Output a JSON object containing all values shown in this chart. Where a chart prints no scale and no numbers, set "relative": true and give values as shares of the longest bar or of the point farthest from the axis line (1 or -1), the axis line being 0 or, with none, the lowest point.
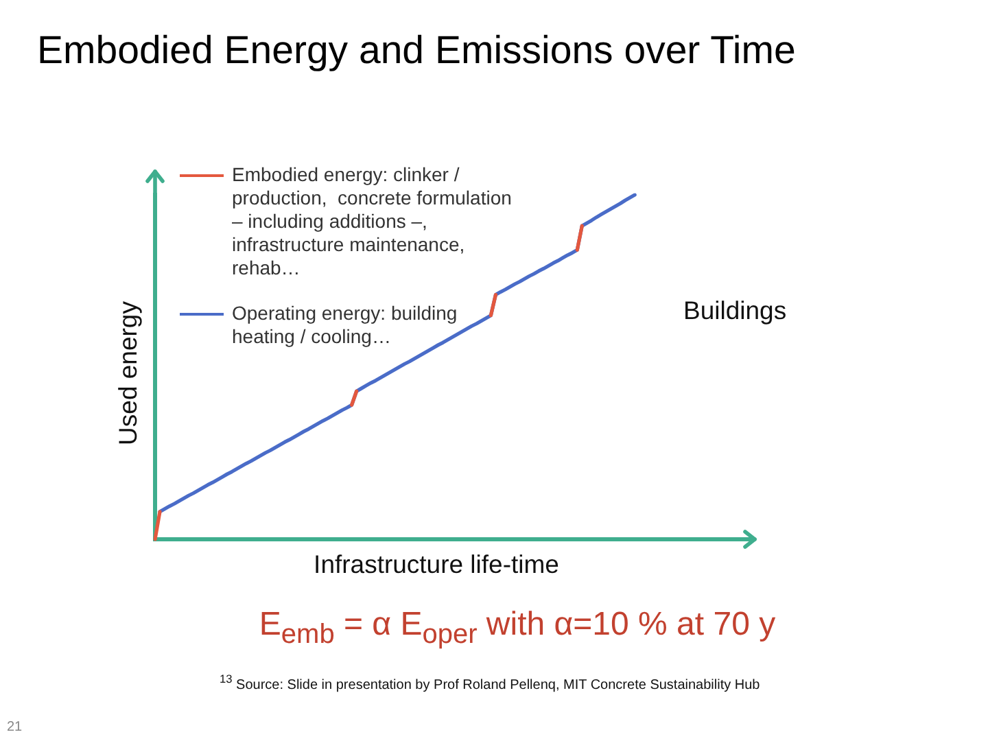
{
  "chart_data": {
    "type": "line",
    "title": "Embodied Energy and Emissions over Time",
    "xlabel": "Infrastructure life-time",
    "ylabel": "Used energy",
    "relative": true,
    "tick_labels": false,
    "legend": "top left",
    "categories": [
      null,
      null,
      null,
      null,
      null,
      null,
      null,
      null,
      null,
      null,
      null,
      null,
      null,
      null,
      null,
      null,
      null,
      null,
      null,
      null,
      null,
      null,
      null,
      null,
      null,
      null,
      null,
      null,
      null,
      null,
      null,
      null,
      null,
      null,
      null,
      null,
      null,
      null,
      null,
      null,
      null,
      null,
      null,
      null,
      null,
      null,
      null,
      null,
      null,
      null,
      null,
      null,
      null,
      null,
      null,
      null,
      null,
      null,
      null,
      null,
      null,
      null,
      null,
      null,
      null,
      null,
      null,
      null,
      null,
      null,
      null,
      null,
      null,
      null,
      null,
      null,
      null,
      null,
      null,
      null,
      null,
      null,
      null,
      null,
      null,
      null,
      null,
      null,
      null,
      null,
      null,
      null,
      null,
      null,
      null,
      null,
      null,
      null,
      null,
      null,
      null,
      null,
      null,
      null,
      null,
      null,
      null,
      null,
      null,
      null,
      null,
      null,
      null,
      null,
      null,
      null,
      null,
      null,
      null,
      null,
      null,
      null,
      null,
      null,
      null,
      null
    ],
    "series": [
      {
        "name": "Embodied energy: clinker / production,  concrete formulation – including additions –, infrastructure maintenance, rehab…",
        "color": "#e4583e",
        "values": [
          0,
          0.08,
          null,
          null,
          null,
          null,
          null,
          null,
          null,
          null,
          null,
          null,
          null,
          null,
          null,
          null,
          null,
          null,
          null,
          null,
          null,
          null,
          null,
          null,
          null,
          null,
          null,
          null,
          null,
          null,
          null,
          null,
          null,
          null,
          null,
          null,
          null,
          null,
          null,
          null,
          null,
          0.39,
          0.43,
          null,
          null,
          null,
          null,
          null,
          null,
          null,
          null,
          null,
          null,
          null,
          null,
          null,
          null,
          null,
          null,
          null,
          null,
          null,
          null,
          null,
          null,
          null,
          null,
          null,
          null,
          null,
          0.65,
          0.71,
          null,
          null,
          null,
          null,
          null,
          null,
          null,
          null,
          null,
          null,
          null,
          null,
          null,
          null,
          null,
          null,
          0.84,
          0.91,
          null,
          null,
          null,
          null,
          null,
          null,
          null,
          null,
          null,
          null,
          null,
          null,
          null,
          null,
          null,
          null,
          null,
          null,
          null,
          null,
          null,
          null,
          null,
          null,
          null,
          null,
          null,
          null,
          null,
          null,
          null,
          null,
          null,
          null,
          null,
          null
        ]
      },
      {
        "name": "Operating energy: building heating / cooling…",
        "color": "#4a6cc8",
        "values": [
          null,
          0.08,
          0.088,
          0.096,
          0.103,
          0.111,
          0.119,
          0.127,
          0.134,
          0.142,
          0.15,
          0.158,
          0.165,
          0.173,
          0.181,
          0.189,
          0.196,
          0.204,
          0.212,
          0.22,
          0.227,
          0.235,
          0.243,
          0.251,
          0.258,
          0.266,
          0.274,
          0.282,
          0.289,
          0.297,
          0.305,
          0.313,
          0.32,
          0.328,
          0.336,
          0.344,
          0.351,
          0.359,
          0.367,
          0.375,
          0.382,
          0.39,
          0.43,
          0.438,
          0.446,
          0.454,
          0.461,
          0.469,
          0.477,
          0.485,
          0.493,
          0.501,
          0.509,
          0.516,
          0.524,
          0.532,
          0.54,
          0.548,
          0.556,
          0.564,
          0.571,
          0.579,
          0.587,
          0.595,
          0.603,
          0.611,
          0.619,
          0.626,
          0.634,
          0.642,
          0.65,
          0.71,
          0.718,
          0.725,
          0.733,
          0.741,
          0.748,
          0.756,
          0.764,
          0.771,
          0.779,
          0.786,
          0.794,
          0.802,
          0.809,
          0.817,
          0.825,
          0.832,
          0.84,
          0.91,
          0.918,
          0.926,
          0.935,
          0.943,
          0.951,
          0.959,
          0.967,
          0.975,
          0.984,
          0.992,
          1,
          null,
          null,
          null,
          null,
          null,
          null,
          null,
          null,
          null,
          null,
          null,
          null,
          null,
          null,
          null,
          null,
          null,
          null,
          null,
          null,
          null,
          null,
          null,
          null,
          null
        ]
      }
    ],
    "annotations": [
      "Buildings",
      "E$_{emb}$ = α E$_{oper}$ with α=10 % at 70 y",
      "$^{13}$ Source:  Slide in presentation by Prof Roland Pellenq, MIT Concrete Sustainability Hub",
      "21"
    ]
  }
}
